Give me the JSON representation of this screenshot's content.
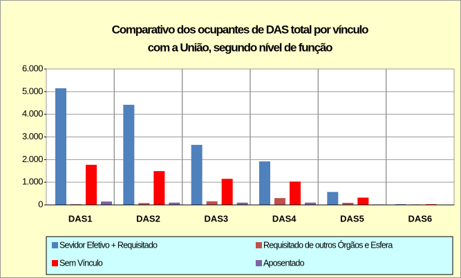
{
  "chart_data": {
    "type": "bar",
    "title": [
      "Comparativo dos ocupantes de DAS total por vínculo",
      "com a União, segundo nível de função"
    ],
    "categories": [
      "DAS1",
      "DAS2",
      "DAS3",
      "DAS4",
      "DAS5",
      "DAS6"
    ],
    "series": [
      {
        "name": "Sevidor Efetivo + Requisitado",
        "color": "#4f81bd",
        "values": [
          5150,
          4420,
          2650,
          1920,
          570,
          30
        ]
      },
      {
        "name": "Requisitado de outros Órgãos e Esfera",
        "color": "#c0504d",
        "values": [
          30,
          80,
          160,
          300,
          90,
          20
        ]
      },
      {
        "name": "Sem Vínculo",
        "color": "#ff0000",
        "values": [
          1770,
          1490,
          1150,
          1030,
          320,
          30
        ]
      },
      {
        "name": "Aposentado",
        "color": "#8064a2",
        "values": [
          150,
          100,
          100,
          100,
          20,
          5
        ]
      }
    ],
    "ylim": [
      0,
      6000
    ],
    "yticks": [
      0,
      {
        "value": 1000,
        "label": "1.000"
      },
      {
        "value": 2000,
        "label": "2.000"
      },
      {
        "value": 3000,
        "label": "3.000"
      },
      {
        "value": 4000,
        "label": "4.000"
      },
      {
        "value": 5000,
        "label": "5.000"
      },
      {
        "value": 6000,
        "label": "6.000"
      }
    ],
    "grid": true
  }
}
